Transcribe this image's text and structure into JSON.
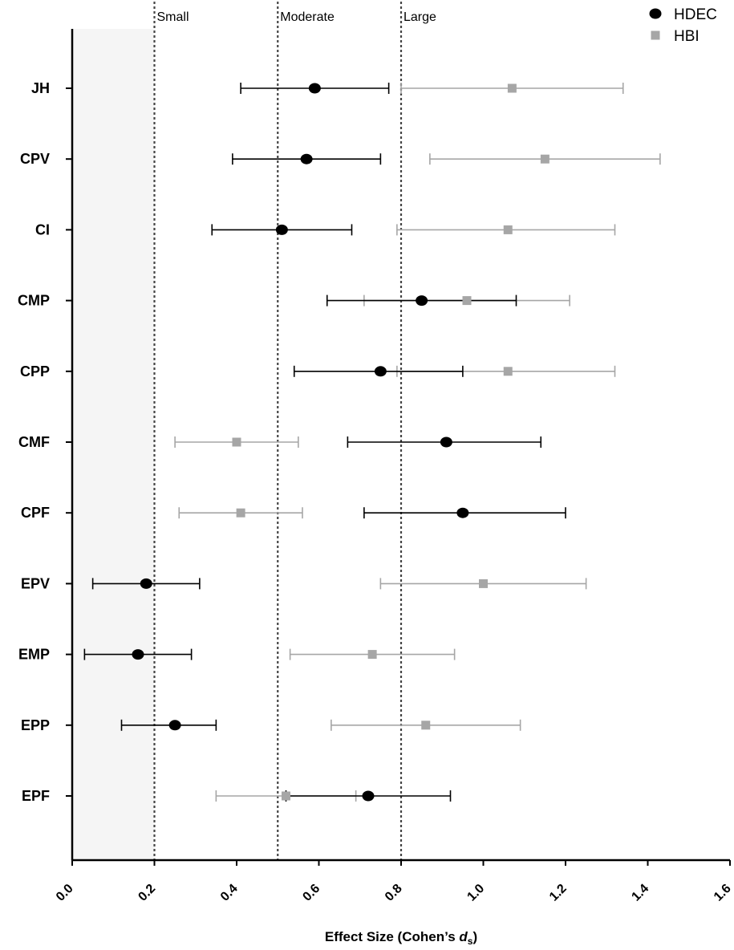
{
  "chart_data": {
    "type": "scatter",
    "subtype": "forest-plot",
    "categories": [
      "JH",
      "CPV",
      "CI",
      "CMP",
      "CPP",
      "CMF",
      "CPF",
      "EPV",
      "EMP",
      "EPP",
      "EPF"
    ],
    "series": [
      {
        "name": "HDEC",
        "marker": "circle",
        "color": "#000000",
        "values": [
          0.59,
          0.57,
          0.51,
          0.85,
          0.75,
          0.91,
          0.95,
          0.18,
          0.16,
          0.25,
          0.72
        ],
        "ci_low": [
          0.41,
          0.39,
          0.34,
          0.62,
          0.54,
          0.67,
          0.71,
          0.05,
          0.03,
          0.12,
          0.52
        ],
        "ci_high": [
          0.77,
          0.75,
          0.68,
          1.08,
          0.95,
          1.14,
          1.2,
          0.31,
          0.29,
          0.35,
          0.92
        ]
      },
      {
        "name": "HBI",
        "marker": "square",
        "color": "#a6a6a6",
        "values": [
          1.07,
          1.15,
          1.06,
          0.96,
          1.06,
          0.4,
          0.41,
          1.0,
          0.73,
          0.86,
          0.52
        ],
        "ci_low": [
          0.8,
          0.87,
          0.79,
          0.71,
          0.79,
          0.25,
          0.26,
          0.75,
          0.53,
          0.63,
          0.35
        ],
        "ci_high": [
          1.34,
          1.43,
          1.32,
          1.21,
          1.32,
          0.55,
          0.56,
          1.25,
          0.93,
          1.09,
          0.69
        ]
      }
    ],
    "reference_lines": [
      {
        "value": 0.2,
        "label": "Small"
      },
      {
        "value": 0.5,
        "label": "Moderate"
      },
      {
        "value": 0.8,
        "label": "Large"
      }
    ],
    "shaded_region": [
      0.0,
      0.2
    ],
    "xlim": [
      0.0,
      1.6
    ],
    "xticks": [
      "0.0",
      "0.2",
      "0.4",
      "0.6",
      "0.8",
      "1.0",
      "1.2",
      "1.4",
      "1.6"
    ],
    "xlabel": "Effect Size (Cohen’s ",
    "xlabel_symbol": "d",
    "xlabel_subscript": "s",
    "xlabel_close": ")",
    "legend_placement": "top-right",
    "grid": false
  }
}
